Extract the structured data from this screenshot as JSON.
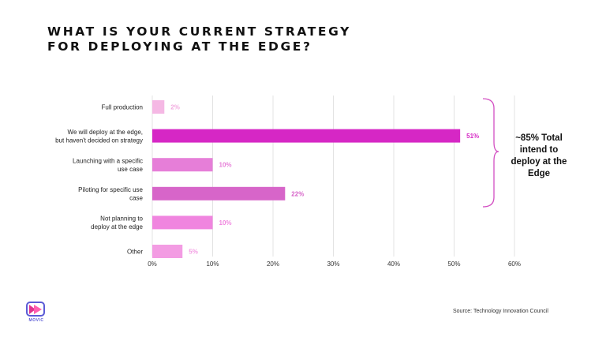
{
  "title_lines": [
    "WHAT IS YOUR CURRENT STRATEGY",
    "FOR DEPLOYING AT THE EDGE?"
  ],
  "chart_data": {
    "type": "bar",
    "orientation": "horizontal",
    "categories": [
      [
        "Full production"
      ],
      [
        "We will deploy at the edge,",
        "but haven't decided on strategy"
      ],
      [
        "Launching  with a specific",
        "use case"
      ],
      [
        "Piloting  for specific use",
        "case"
      ],
      [
        "Not planning  to",
        "deploy at the edge"
      ],
      [
        "Other"
      ]
    ],
    "values": [
      2,
      51,
      10,
      22,
      10,
      5
    ],
    "data_labels": [
      "2%",
      "51%",
      "10%",
      "22%",
      "10%",
      "5%"
    ],
    "bar_colors": [
      "#f5b8e4",
      "#d627c5",
      "#e67ed8",
      "#d765c9",
      "#f085df",
      "#f39ce3"
    ],
    "label_colors": [
      "#f2a9df",
      "#d627c5",
      "#e67ed8",
      "#d765c9",
      "#f085df",
      "#f39ce3"
    ],
    "xlim": [
      0,
      60
    ],
    "xticks": [
      "0%",
      "10%",
      "20%",
      "30%",
      "40%",
      "50%",
      "60%"
    ],
    "grid": true,
    "annotation": {
      "lines": [
        "~85% Total",
        "intend to",
        "deploy at the",
        "Edge"
      ],
      "bracket_color": "#d34fc2"
    }
  },
  "source": "Source: Technology Innovation Council",
  "logo": {
    "icon": "play-logo-icon",
    "text": "MOVIC"
  }
}
